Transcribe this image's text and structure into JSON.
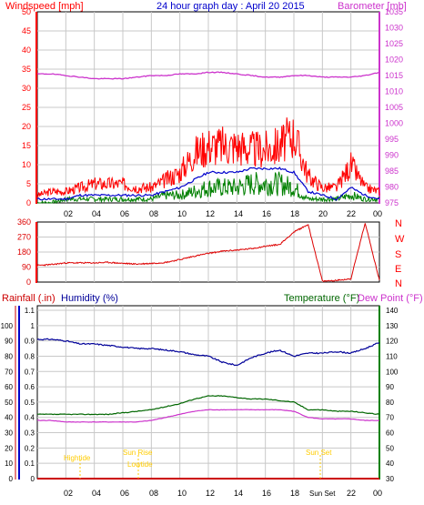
{
  "header": {
    "windspeed": "Windspeed [mph]",
    "title": "24 hour graph day : April 20 2015",
    "barometer": "Barometer [mb]"
  },
  "time_labels": [
    "02",
    "04",
    "06",
    "08",
    "10",
    "12",
    "14",
    "16",
    "18",
    "20",
    "22",
    "00"
  ],
  "compass": [
    "N",
    "W",
    "S",
    "E",
    "N"
  ],
  "bottom_header": {
    "rainfall": "Rainfall (.in)",
    "humidity": "Humidity (%)",
    "temperature": "Temperature (°F)",
    "dewpoint": "Dew Point (°F)"
  },
  "events": {
    "high_tide": "Hightide",
    "sun_rise": "Sun Rise",
    "low_tide": "Lowtide",
    "sun_set": "Sun Set",
    "sun_set_axis": "Sun Set"
  },
  "colors": {
    "windspeed": "#ff0000",
    "gust": "#ff0000",
    "avg_wind": "#0000cc",
    "wind_green": "#008000",
    "barometer": "#cc33cc",
    "direction": "#dd0000",
    "humidity": "#000099",
    "temperature": "#006600",
    "dewpoint": "#cc33cc",
    "rainfall": "#cc0000",
    "events": "#ffcc00",
    "frame": "#000000",
    "grid": "#c8c8c8"
  },
  "chart_data": [
    {
      "type": "line",
      "title": "24 hour graph day : April 20 2015",
      "xlabel": "",
      "x": [
        0,
        1,
        2,
        3,
        4,
        5,
        6,
        7,
        8,
        9,
        10,
        11,
        12,
        13,
        14,
        15,
        16,
        17,
        18,
        19,
        20,
        21,
        22,
        23,
        24
      ],
      "left_axis": {
        "label": "Windspeed [mph]",
        "ylim": [
          0,
          50
        ],
        "ticks": [
          0,
          5,
          10,
          15,
          20,
          25,
          30,
          35,
          40,
          45,
          50
        ]
      },
      "right_axis": {
        "label": "Barometer [mb]",
        "ylim": [
          975,
          1035
        ],
        "ticks": [
          975,
          980,
          985,
          990,
          995,
          1000,
          1005,
          1010,
          1015,
          1020,
          1025,
          1030,
          1035
        ]
      },
      "series": [
        {
          "name": "Windspeed [mph]",
          "axis": "left",
          "values": [
            2,
            3,
            3,
            4,
            5,
            5,
            5,
            4,
            4,
            6,
            8,
            13,
            15,
            15,
            15,
            14,
            14,
            15,
            18,
            7,
            4,
            4,
            10,
            4,
            3
          ]
        },
        {
          "axis": "left",
          "values": [
            1,
            1,
            1,
            2,
            2,
            2,
            2,
            2,
            2,
            3,
            4,
            6,
            8,
            8,
            8,
            9,
            9,
            9,
            8,
            3,
            2,
            1,
            4,
            2,
            1
          ]
        },
        {
          "axis": "left",
          "values": [
            0,
            0,
            1,
            1,
            1,
            1,
            1,
            1,
            1,
            2,
            2,
            3,
            4,
            4,
            4,
            5,
            5,
            5,
            4,
            1,
            1,
            1,
            2,
            1,
            1
          ]
        },
        {
          "name": "Barometer [mb]",
          "axis": "right",
          "values": [
            1015.5,
            1015.5,
            1015,
            1014.5,
            1014,
            1014,
            1014,
            1014.5,
            1015,
            1015,
            1015.5,
            1015.5,
            1016,
            1016,
            1015.5,
            1015,
            1014.5,
            1014.5,
            1015,
            1015,
            1014.5,
            1014.5,
            1014.5,
            1015,
            1016
          ]
        }
      ]
    },
    {
      "type": "line",
      "title": "",
      "xlabel": "",
      "x": [
        0,
        1,
        2,
        3,
        4,
        5,
        6,
        7,
        8,
        9,
        10,
        11,
        12,
        13,
        14,
        15,
        16,
        17,
        18,
        19,
        20,
        21,
        22,
        23,
        24
      ],
      "ylim": [
        0,
        360
      ],
      "yticks": [
        0,
        90,
        180,
        270,
        360
      ],
      "right_labels": [
        "N",
        "W",
        "S",
        "E",
        "N"
      ],
      "series": [
        {
          "name": "Wind direction",
          "values": [
            100,
            105,
            115,
            115,
            115,
            118,
            112,
            108,
            112,
            118,
            135,
            155,
            172,
            185,
            192,
            200,
            215,
            225,
            300,
            345,
            5,
            10,
            20,
            355,
            10
          ]
        }
      ]
    },
    {
      "type": "line",
      "title": "",
      "xlabel": "",
      "x": [
        0,
        1,
        2,
        3,
        4,
        5,
        6,
        7,
        8,
        9,
        10,
        11,
        12,
        13,
        14,
        15,
        16,
        17,
        18,
        19,
        20,
        21,
        22,
        23,
        24
      ],
      "axes": {
        "rainfall": {
          "label": "Rainfall (.in)",
          "ylim": [
            0,
            1.0
          ],
          "ticks": [
            0,
            0.1,
            0.2,
            0.3,
            0.4,
            0.5,
            0.6,
            0.7,
            0.8,
            0.9,
            1.0
          ]
        },
        "humidity": {
          "label": "Humidity (%)",
          "ylim": [
            0,
            100
          ],
          "ticks": [
            0,
            0.1,
            0.2,
            0.3,
            0.4,
            0.5,
            0.6,
            0.7,
            0.8,
            0.9,
            1,
            1.1
          ]
        },
        "temperature": {
          "label": "Temperature (°F)",
          "ylim": [
            30,
            140
          ],
          "ticks": [
            30,
            40,
            50,
            60,
            70,
            80,
            90,
            100,
            110,
            120,
            130,
            140
          ]
        }
      },
      "series": [
        {
          "name": "Humidity (%)",
          "axis": "humidity",
          "values": [
            91,
            91,
            90,
            88,
            88,
            87,
            86,
            85,
            85,
            84,
            83,
            81,
            80,
            76,
            74,
            79,
            82,
            84,
            80,
            82,
            82,
            83,
            82,
            85,
            89
          ]
        },
        {
          "name": "Temperature (°F)",
          "axis": "temperature",
          "values": [
            72,
            72,
            72,
            72,
            72,
            72,
            73,
            74,
            75,
            77,
            79,
            82,
            84,
            84,
            83,
            82,
            82,
            81,
            80,
            75,
            75,
            74,
            74,
            73,
            72
          ]
        },
        {
          "name": "Dew Point (°F)",
          "axis": "temperature",
          "values": [
            68,
            68,
            67,
            67,
            67,
            67,
            67,
            67,
            68,
            70,
            72,
            74,
            75,
            75,
            75,
            75,
            75,
            75,
            74,
            70,
            69,
            69,
            69,
            68,
            68
          ]
        },
        {
          "name": "Rainfall (.in)",
          "axis": "rainfall",
          "values": [
            0,
            0,
            0,
            0,
            0,
            0,
            0,
            0,
            0,
            0,
            0,
            0,
            0,
            0,
            0,
            0,
            0,
            0,
            0,
            0,
            0,
            0,
            0,
            0,
            0
          ]
        }
      ],
      "annotations": [
        "Hightide",
        "Sun Rise",
        "Lowtide",
        "Sun Set"
      ]
    }
  ]
}
